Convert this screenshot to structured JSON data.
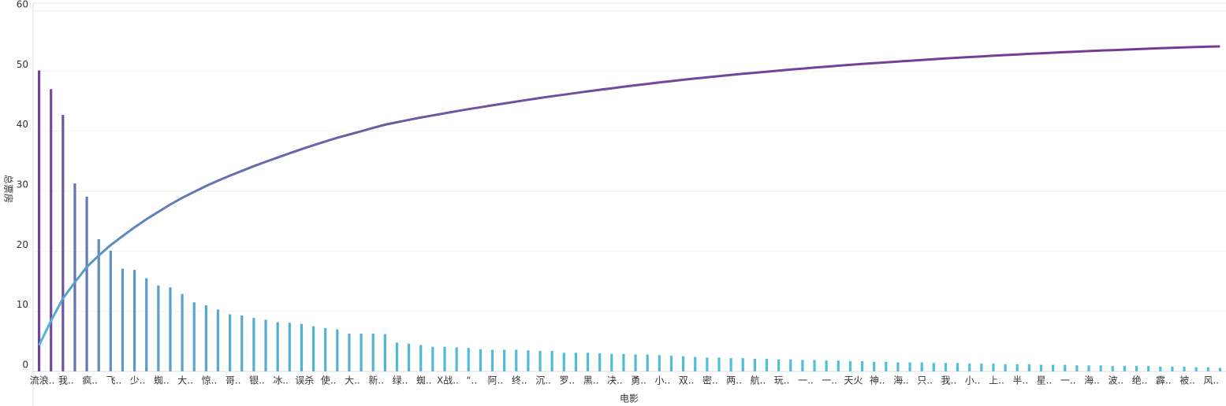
{
  "chart_data": {
    "type": "bar",
    "x_label": "电影",
    "y_label": "总票房",
    "categories": [
      "流浪..",
      null,
      "我..",
      null,
      "疯..",
      null,
      "飞..",
      null,
      "少..",
      null,
      "蜘..",
      null,
      "大..",
      null,
      "惊..",
      null,
      "哥..",
      null,
      "银..",
      null,
      "冰..",
      null,
      "误杀",
      null,
      "使..",
      null,
      "大..",
      null,
      "新..",
      null,
      "绿..",
      null,
      "蜘..",
      null,
      "X战..",
      null,
      "“..",
      null,
      "阿..",
      null,
      "终..",
      null,
      "沉..",
      null,
      "罗..",
      null,
      "黑..",
      null,
      "决..",
      null,
      "勇..",
      null,
      "小..",
      null,
      "双..",
      null,
      "密..",
      null,
      "两..",
      null,
      "航..",
      null,
      "玩..",
      null,
      "一..",
      null,
      "一..",
      null,
      "天火",
      null,
      "神..",
      null,
      "海..",
      null,
      "只..",
      null,
      "我..",
      null,
      "小..",
      null,
      "上..",
      null,
      "半..",
      null,
      "星..",
      null,
      "一..",
      null,
      "海..",
      null,
      "波..",
      null,
      "绝..",
      null,
      "霹..",
      null,
      "被..",
      null,
      "风..",
      null
    ],
    "series": [
      {
        "type": "bar",
        "values": [
          50.1,
          47,
          42.7,
          31.3,
          29.1,
          22,
          20.1,
          17.1,
          16.9,
          15.5,
          14.3,
          14,
          12.9,
          11.5,
          11,
          10.3,
          9.5,
          9.3,
          8.9,
          8.6,
          8.2,
          8.1,
          7.9,
          7.5,
          7.2,
          7,
          6.3,
          6.3,
          6.3,
          6.2,
          4.8,
          4.6,
          4.4,
          4.1,
          4.1,
          4,
          3.9,
          3.7,
          3.6,
          3.6,
          3.6,
          3.5,
          3.4,
          3.4,
          3.1,
          3.1,
          3.1,
          3,
          2.9,
          2.9,
          2.8,
          2.8,
          2.7,
          2.6,
          2.5,
          2.4,
          2.3,
          2.3,
          2.2,
          2.2,
          2.1,
          2.1,
          2,
          2,
          1.9,
          1.9,
          1.8,
          1.8,
          1.7,
          1.7,
          1.6,
          1.6,
          1.5,
          1.5,
          1.5,
          1.4,
          1.4,
          1.4,
          1.3,
          1.3,
          1.3,
          1.2,
          1.2,
          1.2,
          1.1,
          1.1,
          1.1,
          1,
          1,
          1,
          0.9,
          0.9,
          0.9,
          0.9,
          0.8,
          0.8,
          0.8,
          0.7,
          0.7,
          0.6
        ]
      },
      {
        "type": "line",
        "values": [
          4.35,
          8.43,
          12.13,
          14.85,
          17.38,
          19.29,
          21.03,
          22.52,
          23.98,
          25.33,
          26.57,
          27.79,
          28.9,
          29.9,
          30.86,
          31.75,
          32.58,
          33.38,
          34.16,
          34.9,
          35.61,
          36.32,
          37,
          37.65,
          38.28,
          38.89,
          39.43,
          39.98,
          40.53,
          41.07,
          41.48,
          41.88,
          42.26,
          42.62,
          42.97,
          43.32,
          43.66,
          43.98,
          44.29,
          44.61,
          44.92,
          45.22,
          45.52,
          45.81,
          46.08,
          46.35,
          46.62,
          46.88,
          47.13,
          47.38,
          47.63,
          47.87,
          48.1,
          48.33,
          48.55,
          48.76,
          48.96,
          49.15,
          49.35,
          49.54,
          49.72,
          49.9,
          50.07,
          50.25,
          50.41,
          50.58,
          50.73,
          50.89,
          51.04,
          51.19,
          51.32,
          51.46,
          51.59,
          51.72,
          51.85,
          51.98,
          52.1,
          52.22,
          52.33,
          52.44,
          52.56,
          52.66,
          52.77,
          52.87,
          52.97,
          53.06,
          53.16,
          53.24,
          53.33,
          53.42,
          53.49,
          53.57,
          53.65,
          53.73,
          53.8,
          53.87,
          53.94,
          54,
          54.06,
          54.11
        ]
      }
    ],
    "color_range": [
      "#4fc3dc",
      "#7b2a8b"
    ],
    "ylim": [
      0,
      60
    ],
    "yticks": [
      0,
      10,
      20,
      30,
      40,
      50,
      60
    ],
    "grid": true
  }
}
